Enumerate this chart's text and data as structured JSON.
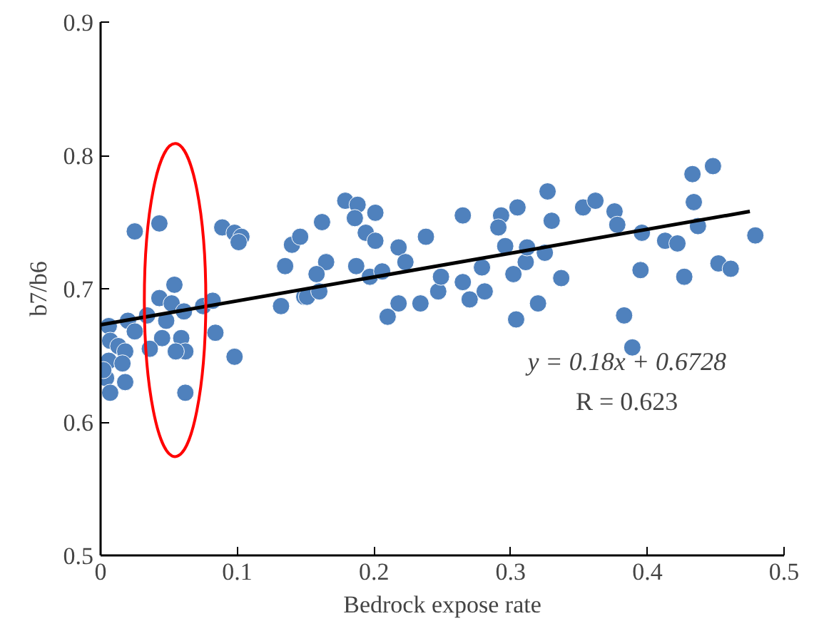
{
  "chart_data": {
    "type": "scatter",
    "xlabel": "Bedrock expose rate",
    "ylabel": "b7/b6",
    "xlim": [
      0,
      0.5
    ],
    "ylim": [
      0.5,
      0.9
    ],
    "xticks": [
      0,
      0.1,
      0.2,
      0.3,
      0.4,
      0.5
    ],
    "yticks": [
      0.5,
      0.6,
      0.7,
      0.8,
      0.9
    ],
    "grid": false,
    "annotations": [
      "y = 0.18x + 0.6728",
      "R = 0.623"
    ],
    "series": [
      {
        "marker": "circle",
        "color": "#4f81bd",
        "x": [
          0.025,
          0.043,
          0.054,
          0.043,
          0.006,
          0.02,
          0.025,
          0.034,
          0.052,
          0.061,
          0.075,
          0.082,
          0.084,
          0.098,
          0.048,
          0.045,
          0.036,
          0.059,
          0.062,
          0.055,
          0.062,
          0.007,
          0.013,
          0.018,
          0.006,
          0.016,
          0.004,
          0.018,
          0.007,
          0.002,
          0.089,
          0.098,
          0.103,
          0.101,
          0.135,
          0.14,
          0.146,
          0.132,
          0.149,
          0.162,
          0.179,
          0.188,
          0.186,
          0.201,
          0.194,
          0.201,
          0.165,
          0.158,
          0.151,
          0.16,
          0.187,
          0.197,
          0.206,
          0.218,
          0.223,
          0.238,
          0.21,
          0.218,
          0.234,
          0.247,
          0.249,
          0.265,
          0.265,
          0.27,
          0.281,
          0.279,
          0.293,
          0.291,
          0.305,
          0.296,
          0.302,
          0.311,
          0.312,
          0.304,
          0.32,
          0.327,
          0.33,
          0.325,
          0.337,
          0.353,
          0.362,
          0.376,
          0.378,
          0.396,
          0.395,
          0.383,
          0.389,
          0.413,
          0.422,
          0.427,
          0.433,
          0.448,
          0.434,
          0.437,
          0.452,
          0.461,
          0.479
        ],
        "values": [
          0.743,
          0.749,
          0.703,
          0.693,
          0.672,
          0.676,
          0.668,
          0.68,
          0.689,
          0.683,
          0.687,
          0.691,
          0.667,
          0.649,
          0.676,
          0.663,
          0.655,
          0.663,
          0.653,
          0.653,
          0.622,
          0.661,
          0.657,
          0.653,
          0.646,
          0.644,
          0.633,
          0.63,
          0.622,
          0.639,
          0.746,
          0.742,
          0.739,
          0.735,
          0.717,
          0.733,
          0.739,
          0.687,
          0.694,
          0.75,
          0.766,
          0.763,
          0.753,
          0.757,
          0.742,
          0.736,
          0.72,
          0.711,
          0.694,
          0.698,
          0.717,
          0.709,
          0.713,
          0.731,
          0.72,
          0.739,
          0.679,
          0.689,
          0.689,
          0.698,
          0.709,
          0.755,
          0.705,
          0.692,
          0.698,
          0.716,
          0.755,
          0.746,
          0.761,
          0.732,
          0.711,
          0.72,
          0.731,
          0.677,
          0.689,
          0.773,
          0.751,
          0.727,
          0.708,
          0.761,
          0.766,
          0.758,
          0.748,
          0.742,
          0.714,
          0.68,
          0.656,
          0.736,
          0.734,
          0.709,
          0.786,
          0.792,
          0.765,
          0.747,
          0.719,
          0.715,
          0.74
        ]
      },
      {
        "type": "line",
        "marker": "none",
        "color": "#000000",
        "x": [
          0,
          0.475
        ],
        "values": [
          0.673,
          0.758
        ]
      }
    ]
  }
}
